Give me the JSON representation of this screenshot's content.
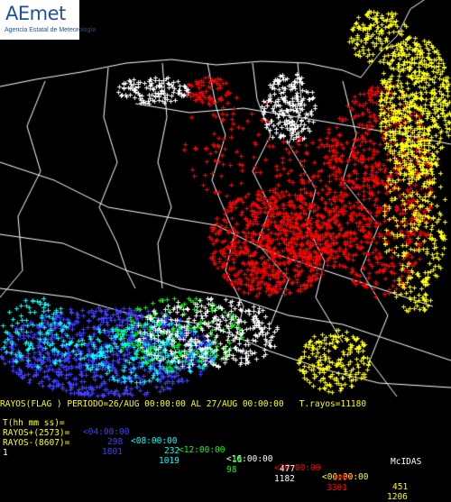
{
  "logo": {
    "name": "AEmet",
    "subtitle": "Agencia Estatal de Meteorología",
    "color": "#1f4fa0"
  },
  "colors": {
    "background": "#000000",
    "borders": "#ffffff",
    "hud_yellow": "#ffff00",
    "band_1": "#4040ff",
    "band_2": "#00ffff",
    "band_3": "#00ff00",
    "band_4": "#ffffff",
    "band_5": "#ff0000",
    "band_6": "#ffff00"
  },
  "header": {
    "title_line": "RAYOS(FLAG ) PERIODO=26/AUG 00:00:00 AL 27/AUG 00:00:00   T.rayos=11180",
    "time_prefix": "T(hh mm ss)=",
    "time_bands": [
      "<04:00:00",
      "<08:00:00",
      "<12:00:00",
      "<16:00:00",
      "<20:00:00",
      "<00:00:00"
    ]
  },
  "rows": {
    "positive": {
      "label": "RAYOS+(2573)=",
      "values": [
        "298",
        "232",
        "18",
        "477",
        "1097",
        "451"
      ]
    },
    "negative": {
      "label": "RAYOS-(8607)=",
      "values": [
        "1801",
        "1019",
        "98",
        "1182",
        "3301",
        "1206"
      ]
    }
  },
  "footer": {
    "frame_number": "1",
    "software": "McIDAS"
  }
}
